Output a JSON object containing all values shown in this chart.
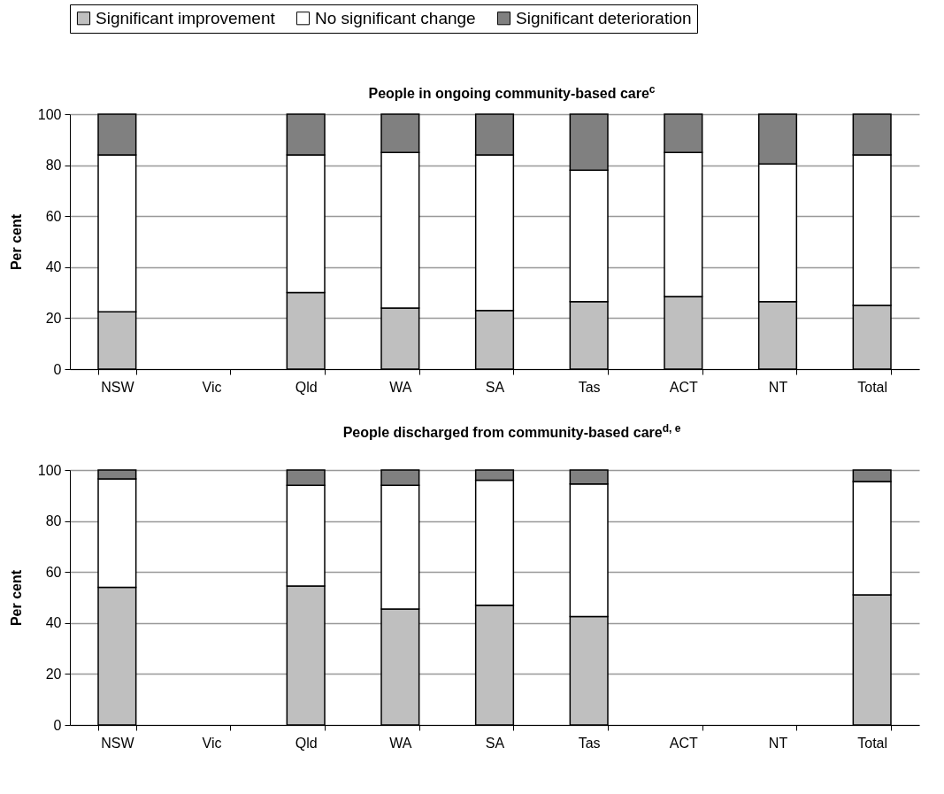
{
  "chart_data": [
    {
      "type": "bar",
      "stacked": true,
      "title": "People in ongoing community-based care$^{c}$",
      "ylabel": "Per cent",
      "categories": [
        "NSW",
        "Vic",
        "Qld",
        "WA",
        "SA",
        "Tas",
        "ACT",
        "NT",
        "Total"
      ],
      "ylim": [
        0,
        100
      ],
      "yticks": [
        0,
        20,
        40,
        60,
        80,
        100
      ],
      "grid": "y",
      "legend": "top",
      "series": [
        {
          "name": "Significant improvement",
          "color": "#bfbfbf",
          "values": [
            22.5,
            null,
            30,
            24,
            23,
            26.5,
            28.5,
            26.5,
            25
          ]
        },
        {
          "name": "No significant change",
          "color": "#ffffff",
          "values": [
            61.5,
            null,
            54,
            61,
            61,
            51.5,
            56.5,
            54,
            59
          ]
        },
        {
          "name": "Significant deterioration",
          "color": "#808080",
          "values": [
            16,
            null,
            16,
            15,
            16,
            22,
            15,
            19.5,
            16
          ]
        }
      ]
    },
    {
      "type": "bar",
      "stacked": true,
      "title": "People discharged from community-based care$^{d, e}$",
      "ylabel": "Per cent",
      "categories": [
        "NSW",
        "Vic",
        "Qld",
        "WA",
        "SA",
        "Tas",
        "ACT",
        "NT",
        "Total"
      ],
      "ylim": [
        0,
        100
      ],
      "yticks": [
        0,
        20,
        40,
        60,
        80,
        100
      ],
      "grid": "y",
      "series": [
        {
          "color": "#bfbfbf",
          "values": [
            54,
            null,
            54.5,
            45.5,
            47,
            42.5,
            null,
            null,
            51
          ]
        },
        {
          "color": "#ffffff",
          "values": [
            42.5,
            null,
            39.5,
            48.5,
            49,
            52,
            null,
            null,
            44.5
          ]
        },
        {
          "color": "#808080",
          "values": [
            3.5,
            null,
            6,
            6,
            4,
            5.5,
            null,
            null,
            4.5
          ]
        }
      ]
    }
  ]
}
